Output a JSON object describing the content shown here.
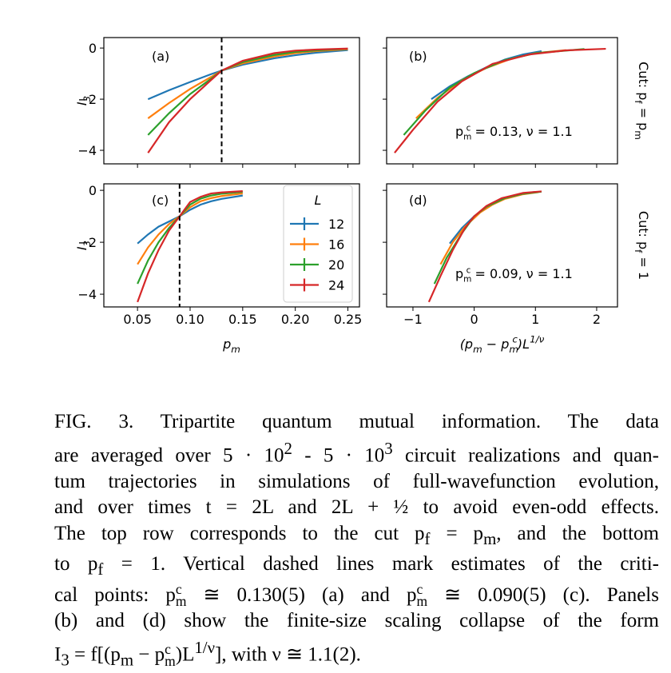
{
  "chart_data": [
    {
      "type": "line",
      "panel_label": "(a)",
      "y_label": [
        "I",
        {
          "sub": "3"
        }
      ],
      "xlim": [
        0.018,
        0.261
      ],
      "ylim": [
        -4.53,
        0.41
      ],
      "xticks": [
        0.05,
        {
          "value": 0.1,
          "label": "0.10"
        },
        0.15,
        {
          "value": 0.2,
          "label": "0.20"
        },
        0.25
      ],
      "show_xtick_labels": false,
      "yticks": [
        0,
        {
          "value": -2,
          "label": "−2"
        },
        {
          "value": -4,
          "label": "−4"
        }
      ],
      "show_ytick_labels": true,
      "critical_line": 0.13,
      "series": [
        {
          "color": "#1f77b4",
          "x": [
            0.06,
            0.08,
            0.1,
            0.12,
            0.13,
            0.15,
            0.18,
            0.2,
            0.22,
            0.25
          ],
          "values": [
            -2.0,
            -1.65,
            -1.33,
            -1.02,
            -0.88,
            -0.65,
            -0.4,
            -0.28,
            -0.18,
            -0.08
          ]
        },
        {
          "color": "#ff7f0e",
          "x": [
            0.06,
            0.08,
            0.1,
            0.12,
            0.13,
            0.15,
            0.18,
            0.2,
            0.22,
            0.25
          ],
          "values": [
            -2.75,
            -2.15,
            -1.6,
            -1.13,
            -0.88,
            -0.6,
            -0.33,
            -0.2,
            -0.12,
            -0.05
          ]
        },
        {
          "color": "#2ca02c",
          "x": [
            0.06,
            0.08,
            0.1,
            0.12,
            0.13,
            0.15,
            0.18,
            0.2,
            0.22,
            0.25
          ],
          "values": [
            -3.4,
            -2.55,
            -1.8,
            -1.2,
            -0.88,
            -0.55,
            -0.27,
            -0.15,
            -0.09,
            -0.03
          ]
        },
        {
          "color": "#d62728",
          "x": [
            0.06,
            0.08,
            0.1,
            0.12,
            0.13,
            0.15,
            0.18,
            0.2,
            0.22,
            0.25
          ],
          "values": [
            -4.1,
            -2.9,
            -2.0,
            -1.25,
            -0.88,
            -0.5,
            -0.2,
            -0.1,
            -0.06,
            -0.02
          ]
        }
      ]
    },
    {
      "type": "line",
      "panel_label": "(b)",
      "xlim": [
        -1.43,
        2.34
      ],
      "ylim": [
        -4.53,
        0.41
      ],
      "xticks": [
        {
          "value": -1,
          "label": "−1"
        },
        0,
        1,
        2
      ],
      "show_xtick_labels": false,
      "yticks": [
        0,
        -2,
        -4
      ],
      "show_ytick_labels": false,
      "annotation": [
        "p",
        {
          "sub": "m",
          "sup": "c"
        },
        " = 0.13, ν = 1.1"
      ],
      "series": [
        {
          "color": "#1f77b4",
          "x": [
            -0.7,
            -0.4,
            -0.1,
            0.2,
            0.5,
            0.8,
            1.1
          ],
          "values": [
            -2.0,
            -1.5,
            -1.1,
            -0.75,
            -0.45,
            -0.25,
            -0.12
          ]
        },
        {
          "color": "#ff7f0e",
          "x": [
            -0.95,
            -0.6,
            -0.2,
            0.2,
            0.6,
            1.0,
            1.5
          ],
          "values": [
            -2.75,
            -1.95,
            -1.25,
            -0.78,
            -0.42,
            -0.2,
            -0.08
          ]
        },
        {
          "color": "#2ca02c",
          "x": [
            -1.15,
            -0.8,
            -0.4,
            0,
            0.5,
            1.0,
            1.8
          ],
          "values": [
            -3.4,
            -2.45,
            -1.55,
            -0.98,
            -0.47,
            -0.2,
            -0.04
          ]
        },
        {
          "color": "#d62728",
          "x": [
            -1.3,
            -1.0,
            -0.6,
            -0.2,
            0.3,
            0.9,
            1.5,
            2.15
          ],
          "values": [
            -4.1,
            -3.2,
            -2.1,
            -1.3,
            -0.62,
            -0.25,
            -0.09,
            -0.03
          ]
        }
      ]
    },
    {
      "type": "line",
      "panel_label": "(c)",
      "y_label": [
        "I",
        {
          "sub": "3"
        }
      ],
      "x_label": [
        "p",
        {
          "sub": "m"
        }
      ],
      "xlim": [
        0.018,
        0.261
      ],
      "ylim": [
        -4.49,
        0.25
      ],
      "xticks": [
        0.05,
        {
          "value": 0.1,
          "label": "0.10"
        },
        0.15,
        {
          "value": 0.2,
          "label": "0.20"
        },
        0.25
      ],
      "show_xtick_labels": true,
      "yticks": [
        0,
        {
          "value": -2,
          "label": "−2"
        },
        {
          "value": -4,
          "label": "−4"
        }
      ],
      "show_ytick_labels": true,
      "critical_line": 0.09,
      "legend": true,
      "legend_title": "L",
      "series": [
        {
          "name": "12",
          "color": "#1f77b4",
          "x": [
            0.05,
            0.06,
            0.07,
            0.08,
            0.09,
            0.1,
            0.11,
            0.12,
            0.13,
            0.15
          ],
          "values": [
            -2.05,
            -1.7,
            -1.4,
            -1.2,
            -1.0,
            -0.75,
            -0.55,
            -0.42,
            -0.33,
            -0.2
          ]
        },
        {
          "name": "16",
          "color": "#ff7f0e",
          "x": [
            0.05,
            0.06,
            0.07,
            0.08,
            0.09,
            0.1,
            0.11,
            0.12,
            0.13,
            0.15
          ],
          "values": [
            -2.85,
            -2.2,
            -1.7,
            -1.3,
            -1.0,
            -0.65,
            -0.42,
            -0.3,
            -0.22,
            -0.12
          ]
        },
        {
          "name": "20",
          "color": "#2ca02c",
          "x": [
            0.05,
            0.06,
            0.07,
            0.08,
            0.09,
            0.1,
            0.11,
            0.12,
            0.13,
            0.15
          ],
          "values": [
            -3.6,
            -2.7,
            -2.0,
            -1.45,
            -1.0,
            -0.55,
            -0.32,
            -0.2,
            -0.13,
            -0.06
          ]
        },
        {
          "name": "24",
          "color": "#d62728",
          "x": [
            0.05,
            0.06,
            0.07,
            0.08,
            0.09,
            0.1,
            0.11,
            0.12,
            0.13,
            0.15
          ],
          "values": [
            -4.3,
            -3.2,
            -2.3,
            -1.55,
            -1.0,
            -0.45,
            -0.25,
            -0.12,
            -0.08,
            -0.03
          ]
        }
      ]
    },
    {
      "type": "line",
      "panel_label": "(d)",
      "x_label": [
        "(p",
        {
          "sub": "m"
        },
        " − p",
        {
          "sub": "m",
          "sup": "c"
        },
        ")L",
        {
          "sup": "1/ν"
        }
      ],
      "xlim": [
        -1.43,
        2.34
      ],
      "ylim": [
        -4.49,
        0.25
      ],
      "xticks": [
        {
          "value": -1,
          "label": "−1"
        },
        0,
        1,
        2
      ],
      "show_xtick_labels": true,
      "yticks": [
        0,
        -2,
        -4
      ],
      "show_ytick_labels": false,
      "annotation": [
        "p",
        {
          "sub": "m",
          "sup": "c"
        },
        " = 0.09, ν = 1.1"
      ],
      "series": [
        {
          "color": "#1f77b4",
          "x": [
            -0.4,
            -0.2,
            0,
            0.2,
            0.4,
            0.6,
            0.8,
            1.0
          ],
          "values": [
            -2.05,
            -1.45,
            -1.0,
            -0.65,
            -0.4,
            -0.22,
            -0.12,
            -0.06
          ]
        },
        {
          "color": "#ff7f0e",
          "x": [
            -0.55,
            -0.35,
            -0.15,
            0.1,
            0.3,
            0.5,
            0.8,
            1.05
          ],
          "values": [
            -2.85,
            -2.0,
            -1.4,
            -0.85,
            -0.55,
            -0.33,
            -0.15,
            -0.07
          ]
        },
        {
          "color": "#2ca02c",
          "x": [
            -0.65,
            -0.45,
            -0.2,
            0,
            0.2,
            0.5,
            0.8,
            1.1
          ],
          "values": [
            -3.6,
            -2.6,
            -1.65,
            -1.0,
            -0.63,
            -0.3,
            -0.13,
            -0.05
          ]
        },
        {
          "color": "#d62728",
          "x": [
            -0.74,
            -0.55,
            -0.35,
            -0.15,
            0,
            0.2,
            0.45,
            0.8,
            1.1
          ],
          "values": [
            -4.3,
            -3.3,
            -2.3,
            -1.45,
            -1.0,
            -0.6,
            -0.3,
            -0.1,
            -0.04
          ]
        }
      ]
    }
  ],
  "row_labels": [
    [
      "Cut: p",
      {
        "sub": "f"
      },
      " = p",
      {
        "sub": "m"
      }
    ],
    [
      "Cut: p",
      {
        "sub": "f"
      },
      " = 1"
    ]
  ],
  "caption": [
    [
      "FIG. 3.   Tripartite quantum mutual information. The data"
    ],
    [
      "are averaged over 5 · 10",
      {
        "sup": "2"
      },
      " - 5 · 10",
      {
        "sup": "3"
      },
      " circuit realizations and quan-"
    ],
    [
      "tum trajectories in simulations of full-wavefunction evolution,"
    ],
    [
      "and over times t = 2L and 2L + ½ to avoid even-odd effects."
    ],
    [
      "The top row corresponds to the cut p",
      {
        "sub": "f"
      },
      " = p",
      {
        "sub": "m"
      },
      ", and the bottom"
    ],
    [
      "to p",
      {
        "sub": "f"
      },
      " = 1.  Vertical dashed lines mark estimates of the criti-"
    ],
    [
      "cal points: p",
      {
        "sub": "m",
        "sup": "c"
      },
      " ≅ 0.130(5) (a) and p",
      {
        "sub": "m",
        "sup": "c"
      },
      " ≅ 0.090(5) (c).  Panels"
    ],
    [
      "(b) and (d) show the finite-size scaling collapse of the form"
    ],
    [
      "I",
      {
        "sub": "3"
      },
      " = f[(p",
      {
        "sub": "m"
      },
      " − p",
      {
        "sub": "m",
        "sup": "c"
      },
      ")L",
      {
        "sup": "1/ν"
      },
      "], with ν ≅ 1.1(2)."
    ]
  ]
}
